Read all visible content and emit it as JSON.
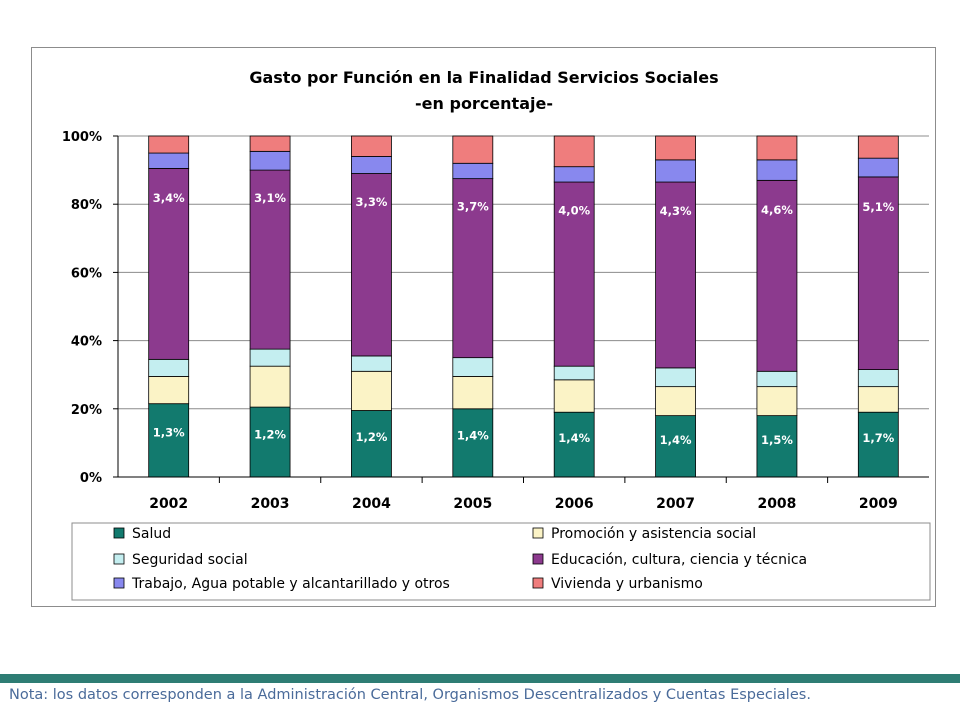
{
  "footer": {
    "note": "Nota: los datos corresponden a la Administración Central, Organismos Descentralizados y Cuentas Especiales."
  },
  "chart_data": {
    "type": "bar",
    "stacked": true,
    "percent_stacked": true,
    "title": "Gasto por Función en la Finalidad Servicios Sociales",
    "subtitle": "-en porcentaje-",
    "xlabel": "",
    "ylabel": "",
    "ylim": [
      0,
      100
    ],
    "yticks": [
      "0%",
      "20%",
      "40%",
      "60%",
      "80%",
      "100%"
    ],
    "grid": true,
    "legend_position": "bottom",
    "categories": [
      "2002",
      "2003",
      "2004",
      "2005",
      "2006",
      "2007",
      "2008",
      "2009"
    ],
    "series": [
      {
        "name": "Salud",
        "color": "#127a6e",
        "values": [
          21.5,
          20.5,
          19.5,
          20.0,
          19.0,
          18.0,
          18.0,
          19.0
        ],
        "labels": [
          "1,3%",
          "1,2%",
          "1,2%",
          "1,4%",
          "1,4%",
          "1,4%",
          "1,5%",
          "1,7%"
        ]
      },
      {
        "name": "Promoción y asistencia social",
        "color": "#fbf3c6",
        "values": [
          8.0,
          12.0,
          11.5,
          9.5,
          9.5,
          8.5,
          8.5,
          7.5
        ]
      },
      {
        "name": "Seguridad social",
        "color": "#c4eef0",
        "values": [
          5.0,
          5.0,
          4.5,
          5.5,
          4.0,
          5.5,
          4.5,
          5.0
        ]
      },
      {
        "name": "Educación, cultura, ciencia y técnica",
        "color": "#8c3a8e",
        "values": [
          56.0,
          52.5,
          53.5,
          52.5,
          54.0,
          54.5,
          56.0,
          56.5
        ],
        "labels": [
          "3,4%",
          "3,1%",
          "3,3%",
          "3,7%",
          "4,0%",
          "4,3%",
          "4,6%",
          "5,1%"
        ]
      },
      {
        "name": "Trabajo, Agua potable y alcantarillado y otros",
        "color": "#8888ee",
        "values": [
          4.5,
          5.5,
          5.0,
          4.5,
          4.5,
          6.5,
          6.0,
          5.5
        ]
      },
      {
        "name": "Vivienda y urbanismo",
        "color": "#ef7d7d",
        "values": [
          5.0,
          4.5,
          6.0,
          8.0,
          9.0,
          7.0,
          7.0,
          6.5
        ]
      }
    ]
  }
}
